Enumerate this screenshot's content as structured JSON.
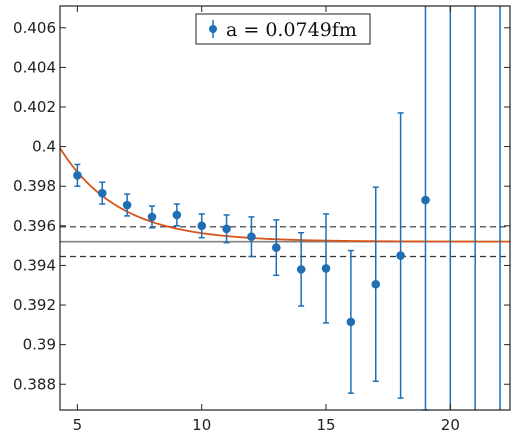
{
  "chart_data": {
    "type": "scatter",
    "xlim": [
      4.3,
      22.4
    ],
    "ylim": [
      0.3867,
      0.4071
    ],
    "xticks": [
      5,
      10,
      15,
      20
    ],
    "yticks": [
      0.388,
      0.39,
      0.392,
      0.394,
      0.396,
      0.398,
      0.4,
      0.402,
      0.404,
      0.406
    ],
    "xtick_labels": [
      "5",
      "10",
      "15",
      "20"
    ],
    "ytick_labels": [
      "0.388",
      "0.39",
      "0.392",
      "0.394",
      "0.396",
      "0.398",
      "0.4",
      "0.402",
      "0.404",
      "0.406"
    ],
    "grid": false,
    "legend": {
      "label": "a = 0.0749fm",
      "placement": "top-center"
    },
    "series": [
      {
        "name": "a = 0.0749fm",
        "color": "#1f6fb2",
        "points": [
          {
            "x": 5,
            "y": 0.39855,
            "err": 0.00055
          },
          {
            "x": 6,
            "y": 0.39765,
            "err": 0.00055
          },
          {
            "x": 7,
            "y": 0.39705,
            "err": 0.00055
          },
          {
            "x": 8,
            "y": 0.39645,
            "err": 0.00055
          },
          {
            "x": 9,
            "y": 0.39655,
            "err": 0.00055
          },
          {
            "x": 10,
            "y": 0.396,
            "err": 0.0006
          },
          {
            "x": 11,
            "y": 0.39585,
            "err": 0.0007
          },
          {
            "x": 12,
            "y": 0.39545,
            "err": 0.001
          },
          {
            "x": 13,
            "y": 0.3949,
            "err": 0.0014
          },
          {
            "x": 14,
            "y": 0.3938,
            "err": 0.00185
          },
          {
            "x": 15,
            "y": 0.39385,
            "err": 0.00275
          },
          {
            "x": 16,
            "y": 0.39115,
            "err": 0.0036
          },
          {
            "x": 17,
            "y": 0.39305,
            "err": 0.0049
          },
          {
            "x": 18,
            "y": 0.3945,
            "err": 0.0072
          },
          {
            "x": 19,
            "y": 0.3973,
            "err": 0.02
          },
          {
            "x": 20,
            "y": null,
            "err": null,
            "errorbar_full": true
          },
          {
            "x": 21,
            "y": null,
            "err": null,
            "errorbar_full": true
          },
          {
            "x": 22,
            "y": null,
            "err": null,
            "errorbar_full": true
          }
        ]
      }
    ],
    "fit": {
      "color": "#d9541a",
      "plateau": 0.3952,
      "amplitude": 0.00472,
      "decay": 0.42
    },
    "band": {
      "upper": 0.39595,
      "lower": 0.39445,
      "center": 0.3952,
      "center_color": "#808080",
      "band_color": "#333333"
    }
  }
}
